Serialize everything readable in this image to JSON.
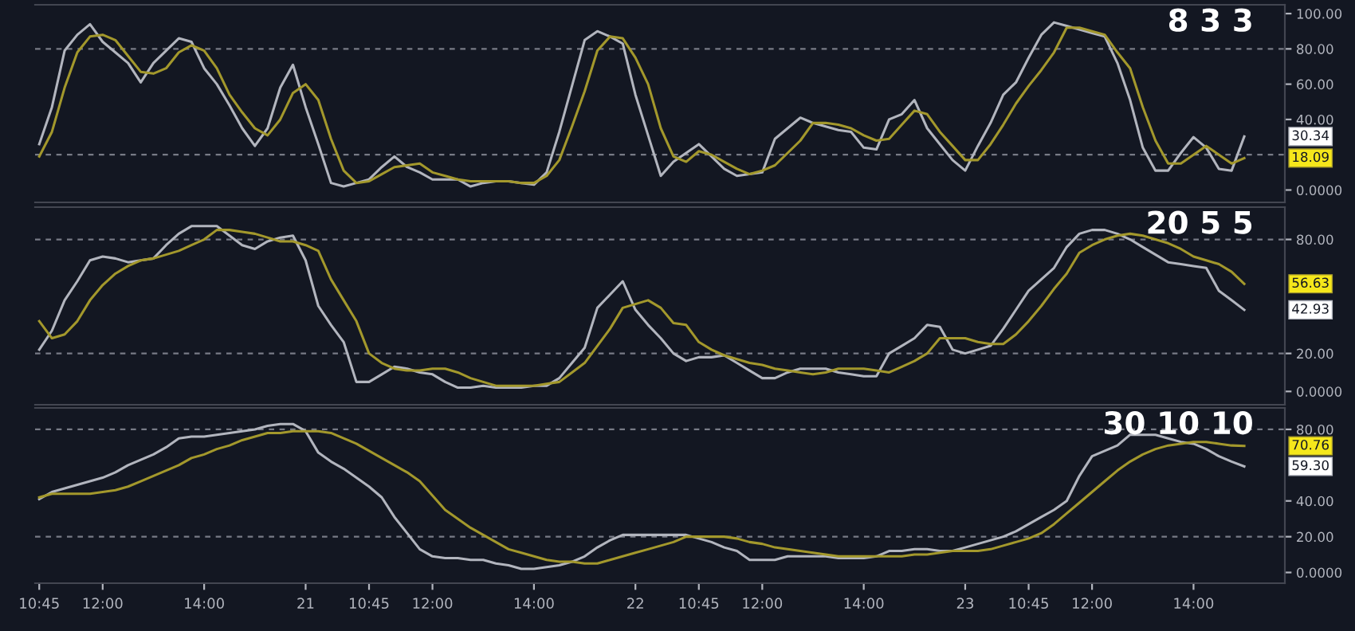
{
  "chart_data": [
    {
      "type": "line",
      "title": "8 3 3",
      "categories": [
        null,
        null,
        null,
        null,
        null,
        null,
        null,
        null,
        null,
        null,
        null,
        null,
        null,
        null,
        null,
        null,
        null,
        null,
        null,
        null,
        null,
        null,
        null,
        null,
        null,
        null,
        null,
        null,
        null,
        null,
        null,
        null,
        null,
        null,
        null,
        null,
        null,
        null,
        null,
        null,
        null,
        null,
        null,
        null,
        null,
        null,
        null,
        null,
        null,
        null,
        null,
        null,
        null,
        null,
        null,
        null,
        null,
        null,
        null,
        null,
        null,
        null,
        null,
        null,
        null,
        null,
        null,
        null,
        null,
        null,
        null,
        null,
        null,
        null,
        null,
        null,
        null,
        null,
        null,
        null,
        null,
        null,
        null,
        null,
        null,
        null,
        null,
        null,
        null,
        null,
        null,
        null,
        null,
        null,
        null,
        null
      ],
      "tick_labels": "y",
      "ylim": [
        -7,
        105
      ],
      "yticks": [
        {
          "value": 0,
          "label": "0.0000"
        },
        {
          "value": 40,
          "label": "40.00"
        },
        {
          "value": 60,
          "label": "60.00"
        },
        {
          "value": 80,
          "label": "80.00"
        },
        {
          "value": 100,
          "label": "100.00"
        }
      ],
      "legend": false,
      "series": [
        {
          "color": "#b2b5be",
          "values": [
            26,
            47,
            79,
            88,
            94,
            84,
            78,
            72,
            61,
            72,
            79,
            86,
            84,
            69,
            60,
            48,
            35,
            25,
            35,
            58,
            71,
            47,
            26,
            4,
            2,
            4,
            6,
            13,
            19,
            13,
            10,
            6,
            6,
            6,
            2,
            4,
            5,
            5,
            4,
            3,
            10,
            33,
            59,
            85,
            90,
            87,
            83,
            54,
            31,
            8,
            16,
            21,
            26,
            19,
            12,
            8,
            9,
            10,
            29,
            35,
            41,
            38,
            36,
            34,
            33,
            24,
            23,
            40,
            43,
            51,
            35,
            26,
            17,
            11,
            25,
            38,
            54,
            61,
            75,
            88,
            95,
            93,
            91,
            89,
            87,
            72,
            51,
            24,
            11,
            11,
            21,
            30,
            24,
            12,
            11,
            30.34
          ]
        },
        {
          "color": "#a3982c",
          "values": [
            19,
            33,
            58,
            78,
            87,
            88,
            85,
            76,
            67,
            66,
            69,
            78,
            82,
            79,
            69,
            54,
            44,
            35,
            31,
            40,
            55,
            60,
            51,
            29,
            11,
            4,
            5,
            9,
            13,
            14,
            15,
            10,
            8,
            6,
            5,
            5,
            5,
            5,
            4,
            4,
            8,
            17,
            36,
            56,
            79,
            87,
            86,
            75,
            60,
            35,
            19,
            16,
            22,
            20,
            16,
            12,
            9,
            11,
            14,
            21,
            28,
            38,
            38,
            37,
            35,
            31,
            28,
            29,
            37,
            45,
            43,
            33,
            25,
            17,
            17,
            26,
            37,
            49,
            59,
            68,
            78,
            92,
            92,
            90,
            88,
            78,
            69,
            47,
            28,
            15,
            15,
            20,
            25,
            20,
            15,
            18.09
          ]
        }
      ],
      "ref_lines": [
        {
          "axis": "y",
          "value": 80,
          "color": "#787b86",
          "line_style": "dashed"
        },
        {
          "axis": "y",
          "value": 20,
          "color": "#787b86",
          "line_style": "dashed"
        }
      ],
      "annotations": [
        "30.34",
        "18.09"
      ]
    },
    {
      "type": "line",
      "title": "20 5 5",
      "categories": [
        null,
        null,
        null,
        null,
        null,
        null,
        null,
        null,
        null,
        null,
        null,
        null,
        null,
        null,
        null,
        null,
        null,
        null,
        null,
        null,
        null,
        null,
        null,
        null,
        null,
        null,
        null,
        null,
        null,
        null,
        null,
        null,
        null,
        null,
        null,
        null,
        null,
        null,
        null,
        null,
        null,
        null,
        null,
        null,
        null,
        null,
        null,
        null,
        null,
        null,
        null,
        null,
        null,
        null,
        null,
        null,
        null,
        null,
        null,
        null,
        null,
        null,
        null,
        null,
        null,
        null,
        null,
        null,
        null,
        null,
        null,
        null,
        null,
        null,
        null,
        null,
        null,
        null,
        null,
        null,
        null,
        null,
        null,
        null,
        null,
        null,
        null,
        null,
        null,
        null,
        null,
        null,
        null,
        null,
        null,
        null
      ],
      "tick_labels": "y",
      "ylim": [
        -7,
        97
      ],
      "yticks": [
        {
          "value": 0,
          "label": "0.0000"
        },
        {
          "value": 20,
          "label": "20.00"
        },
        {
          "value": 80,
          "label": "80.00"
        }
      ],
      "legend": false,
      "series": [
        {
          "color": "#b2b5be",
          "values": [
            22,
            32,
            48,
            58,
            69,
            71,
            70,
            68,
            69,
            70,
            77,
            83,
            87,
            87,
            87,
            82,
            77,
            75,
            79,
            81,
            82,
            69,
            45,
            35,
            26,
            5,
            5,
            9,
            13,
            12,
            10,
            9,
            5,
            2,
            2,
            3,
            2,
            2,
            2,
            3,
            3,
            7,
            15,
            23,
            44,
            51,
            58,
            43,
            35,
            28,
            20,
            16,
            18,
            18,
            19,
            15,
            11,
            7,
            7,
            10,
            12,
            12,
            12,
            10,
            9,
            8,
            8,
            20,
            24,
            28,
            35,
            34,
            22,
            20,
            22,
            24,
            33,
            43,
            53,
            59,
            65,
            76,
            83,
            85,
            85,
            83,
            80,
            76,
            72,
            68,
            67,
            66,
            65,
            53,
            48,
            42.93
          ]
        },
        {
          "color": "#a3982c",
          "values": [
            37,
            28,
            30,
            37,
            48,
            56,
            62,
            66,
            69,
            70,
            72,
            74,
            77,
            80,
            85,
            85,
            84,
            83,
            81,
            79,
            79,
            77,
            74,
            59,
            48,
            37,
            20,
            15,
            12,
            11,
            11,
            12,
            12,
            10,
            7,
            5,
            3,
            3,
            3,
            3,
            4,
            5,
            10,
            15,
            24,
            33,
            44,
            46,
            48,
            44,
            36,
            35,
            26,
            22,
            19,
            17,
            15,
            14,
            12,
            11,
            10,
            9,
            10,
            12,
            12,
            12,
            11,
            10,
            13,
            16,
            20,
            28,
            28,
            28,
            26,
            25,
            25,
            30,
            37,
            45,
            54,
            62,
            73,
            77,
            80,
            82,
            83,
            82,
            80,
            78,
            75,
            71,
            69,
            67,
            63,
            56.63
          ]
        }
      ],
      "ref_lines": [
        {
          "axis": "y",
          "value": 80,
          "color": "#787b86",
          "line_style": "dashed"
        },
        {
          "axis": "y",
          "value": 20,
          "color": "#787b86",
          "line_style": "dashed"
        }
      ],
      "annotations": [
        "42.93",
        "56.63"
      ]
    },
    {
      "type": "line",
      "title": "30 10 10",
      "categories": [
        "10:45",
        null,
        null,
        null,
        null,
        "12:00",
        null,
        null,
        null,
        null,
        null,
        null,
        null,
        "14:00",
        null,
        null,
        null,
        null,
        null,
        null,
        null,
        "21",
        null,
        null,
        null,
        null,
        "10:45",
        null,
        null,
        null,
        null,
        "12:00",
        null,
        null,
        null,
        null,
        null,
        null,
        null,
        "14:00",
        null,
        null,
        null,
        null,
        null,
        null,
        null,
        "22",
        null,
        null,
        null,
        null,
        "10:45",
        null,
        null,
        null,
        null,
        "12:00",
        null,
        null,
        null,
        null,
        null,
        null,
        null,
        "14:00",
        null,
        null,
        null,
        null,
        null,
        null,
        null,
        "23",
        null,
        null,
        null,
        null,
        "10:45",
        null,
        null,
        null,
        null,
        "12:00",
        null,
        null,
        null,
        null,
        null,
        null,
        null,
        "14:00",
        null,
        null,
        null,
        null
      ],
      "ylim": [
        -6,
        92
      ],
      "yticks": [
        {
          "value": 0,
          "label": "0.0000"
        },
        {
          "value": 20,
          "label": "20.00"
        },
        {
          "value": 40,
          "label": "40.00"
        },
        {
          "value": 80,
          "label": "80.00"
        }
      ],
      "legend": false,
      "series": [
        {
          "color": "#b2b5be",
          "values": [
            41,
            45,
            47,
            49,
            51,
            53,
            56,
            60,
            63,
            66,
            70,
            75,
            76,
            76,
            77,
            78,
            79,
            80,
            82,
            83,
            83,
            79,
            67,
            62,
            58,
            53,
            48,
            42,
            31,
            22,
            13,
            9,
            8,
            8,
            7,
            7,
            5,
            4,
            2,
            2,
            3,
            4,
            6,
            9,
            14,
            18,
            21,
            21,
            21,
            21,
            21,
            21,
            19,
            17,
            14,
            12,
            7,
            7,
            7,
            9,
            9,
            9,
            9,
            8,
            8,
            8,
            9,
            12,
            12,
            13,
            13,
            12,
            12,
            14,
            16,
            18,
            20,
            23,
            27,
            31,
            35,
            40,
            54,
            65,
            68,
            71,
            77,
            77,
            77,
            75,
            73,
            72,
            69,
            65,
            62,
            59.3
          ]
        },
        {
          "color": "#a3982c",
          "values": [
            42,
            44,
            44,
            44,
            44,
            45,
            46,
            48,
            51,
            54,
            57,
            60,
            64,
            66,
            69,
            71,
            74,
            76,
            78,
            78,
            79,
            79,
            79,
            78,
            75,
            72,
            68,
            64,
            60,
            56,
            51,
            43,
            35,
            30,
            25,
            21,
            17,
            13,
            11,
            9,
            7,
            6,
            6,
            5,
            5,
            7,
            9,
            11,
            13,
            15,
            17,
            20,
            20,
            20,
            20,
            19,
            17,
            16,
            14,
            13,
            12,
            11,
            10,
            9,
            9,
            9,
            9,
            9,
            9,
            10,
            10,
            11,
            12,
            12,
            12,
            13,
            15,
            17,
            19,
            22,
            27,
            33,
            39,
            45,
            51,
            57,
            62,
            66,
            69,
            71,
            72,
            73,
            73,
            72,
            71,
            70.76
          ]
        }
      ],
      "ref_lines": [
        {
          "axis": "y",
          "value": 80,
          "color": "#787b86",
          "line_style": "dashed"
        },
        {
          "axis": "y",
          "value": 20,
          "color": "#787b86",
          "line_style": "dashed"
        }
      ],
      "annotations": [
        "59.30",
        "70.76"
      ]
    }
  ]
}
